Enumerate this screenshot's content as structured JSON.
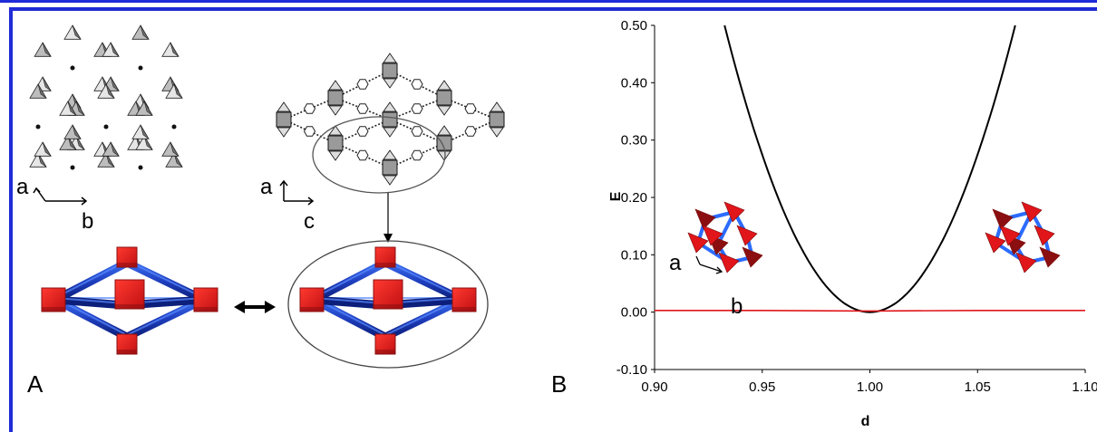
{
  "panel_a": {
    "label": "A",
    "axes_left": {
      "a": "a",
      "b": "b"
    },
    "axes_right": {
      "a": "a",
      "c": "c"
    }
  },
  "panel_b": {
    "label": "B",
    "inset_axes": {
      "a": "a",
      "b": "b"
    }
  },
  "colors": {
    "frame": "#1f2bd6",
    "cube": "#e0161b",
    "cube_dark": "#8b0f10",
    "rod": "#1f3fbf",
    "rod_light": "#3b6ff0",
    "energy_curve": "#000000",
    "flat_curve": "#e0161b"
  },
  "chart_data": {
    "type": "line",
    "title": "",
    "xlabel": "d",
    "ylabel": "E",
    "xlim": [
      0.9,
      1.1
    ],
    "ylim": [
      -0.1,
      0.5
    ],
    "x_ticks": [
      "0.90",
      "0.95",
      "1.00",
      "1.05",
      "1.10"
    ],
    "y_ticks": [
      "0.50",
      "0.40",
      "0.30",
      "0.20",
      "0.10",
      "0.00",
      "-0.10"
    ],
    "grid": false,
    "series": [
      {
        "x": [
          0.9325,
          0.94,
          0.95,
          0.96,
          0.97,
          0.98,
          0.99,
          1.0,
          1.01,
          1.02,
          1.03,
          1.04,
          1.05,
          1.06,
          1.0675
        ],
        "y": [
          0.5,
          0.41,
          0.3,
          0.2,
          0.12,
          0.055,
          0.013,
          0.0,
          0.013,
          0.055,
          0.12,
          0.2,
          0.3,
          0.41,
          0.5
        ]
      },
      {
        "x": [
          0.9,
          0.95,
          1.0,
          1.05,
          1.1
        ],
        "y": [
          0.003,
          0.003,
          0.002,
          0.003,
          0.003
        ]
      }
    ]
  }
}
